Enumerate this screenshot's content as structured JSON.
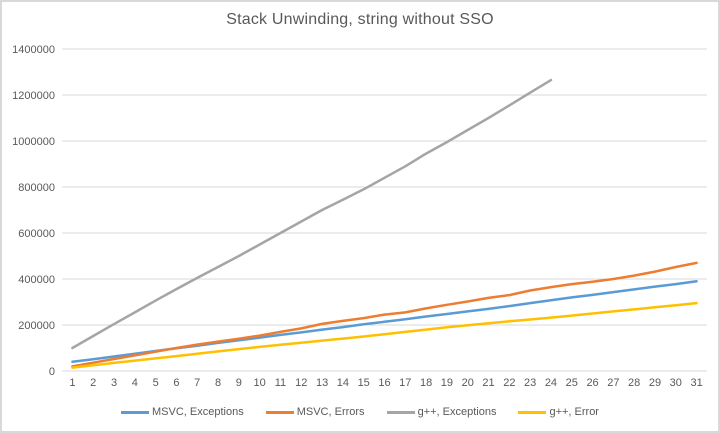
{
  "chart_data": {
    "type": "line",
    "title": "Stack Unwinding, string without SSO",
    "xlabel": "",
    "ylabel": "",
    "categories": [
      "1",
      "2",
      "3",
      "4",
      "5",
      "6",
      "7",
      "8",
      "9",
      "10",
      "11",
      "12",
      "13",
      "14",
      "15",
      "16",
      "17",
      "18",
      "19",
      "20",
      "21",
      "22",
      "23",
      "24",
      "25",
      "26",
      "27",
      "28",
      "29",
      "30",
      "31"
    ],
    "ylim": [
      0,
      1400000
    ],
    "yticks": [
      0,
      200000,
      400000,
      600000,
      800000,
      1000000,
      1200000,
      1400000
    ],
    "grid": true,
    "legend_position": "bottom",
    "series": [
      {
        "name": "MSVC, Exceptions",
        "color": "#5B9BD5",
        "values": [
          40000,
          51000,
          63000,
          75000,
          87000,
          99000,
          110000,
          122000,
          134000,
          145000,
          157000,
          168000,
          180000,
          191000,
          203000,
          214000,
          225000,
          237000,
          248000,
          259000,
          270000,
          282000,
          295000,
          308000,
          320000,
          331000,
          343000,
          355000,
          367000,
          378000,
          390000
        ]
      },
      {
        "name": "MSVC, Errors",
        "color": "#ED7D31",
        "values": [
          20000,
          36000,
          52000,
          68000,
          84000,
          100000,
          115000,
          128000,
          140000,
          154000,
          170000,
          185000,
          205000,
          218000,
          230000,
          245000,
          255000,
          272000,
          288000,
          302000,
          318000,
          330000,
          350000,
          365000,
          378000,
          388000,
          400000,
          415000,
          432000,
          452000,
          470000
        ]
      },
      {
        "name": "g++, Exceptions",
        "color": "#A5A5A5",
        "values": [
          100000,
          152000,
          204000,
          255000,
          306000,
          356000,
          405000,
          452000,
          500000,
          550000,
          600000,
          650000,
          700000,
          745000,
          790000,
          840000,
          890000,
          945000,
          995000,
          1048000,
          1100000,
          1155000,
          1210000,
          1265000
        ]
      },
      {
        "name": "g++, Error",
        "color": "#FFC000",
        "values": [
          15000,
          25000,
          35000,
          45000,
          55000,
          65000,
          75000,
          85000,
          95000,
          105000,
          114000,
          123000,
          132000,
          141000,
          150000,
          160000,
          170000,
          180000,
          190000,
          199000,
          208000,
          216000,
          224000,
          232000,
          241000,
          250000,
          259000,
          268000,
          277000,
          286000,
          295000
        ]
      }
    ]
  },
  "colors": {
    "gridline": "#D9D9D9",
    "axis_text": "#595959",
    "title_text": "#595959",
    "border": "#D9D9D9",
    "background": "#FFFFFF"
  }
}
